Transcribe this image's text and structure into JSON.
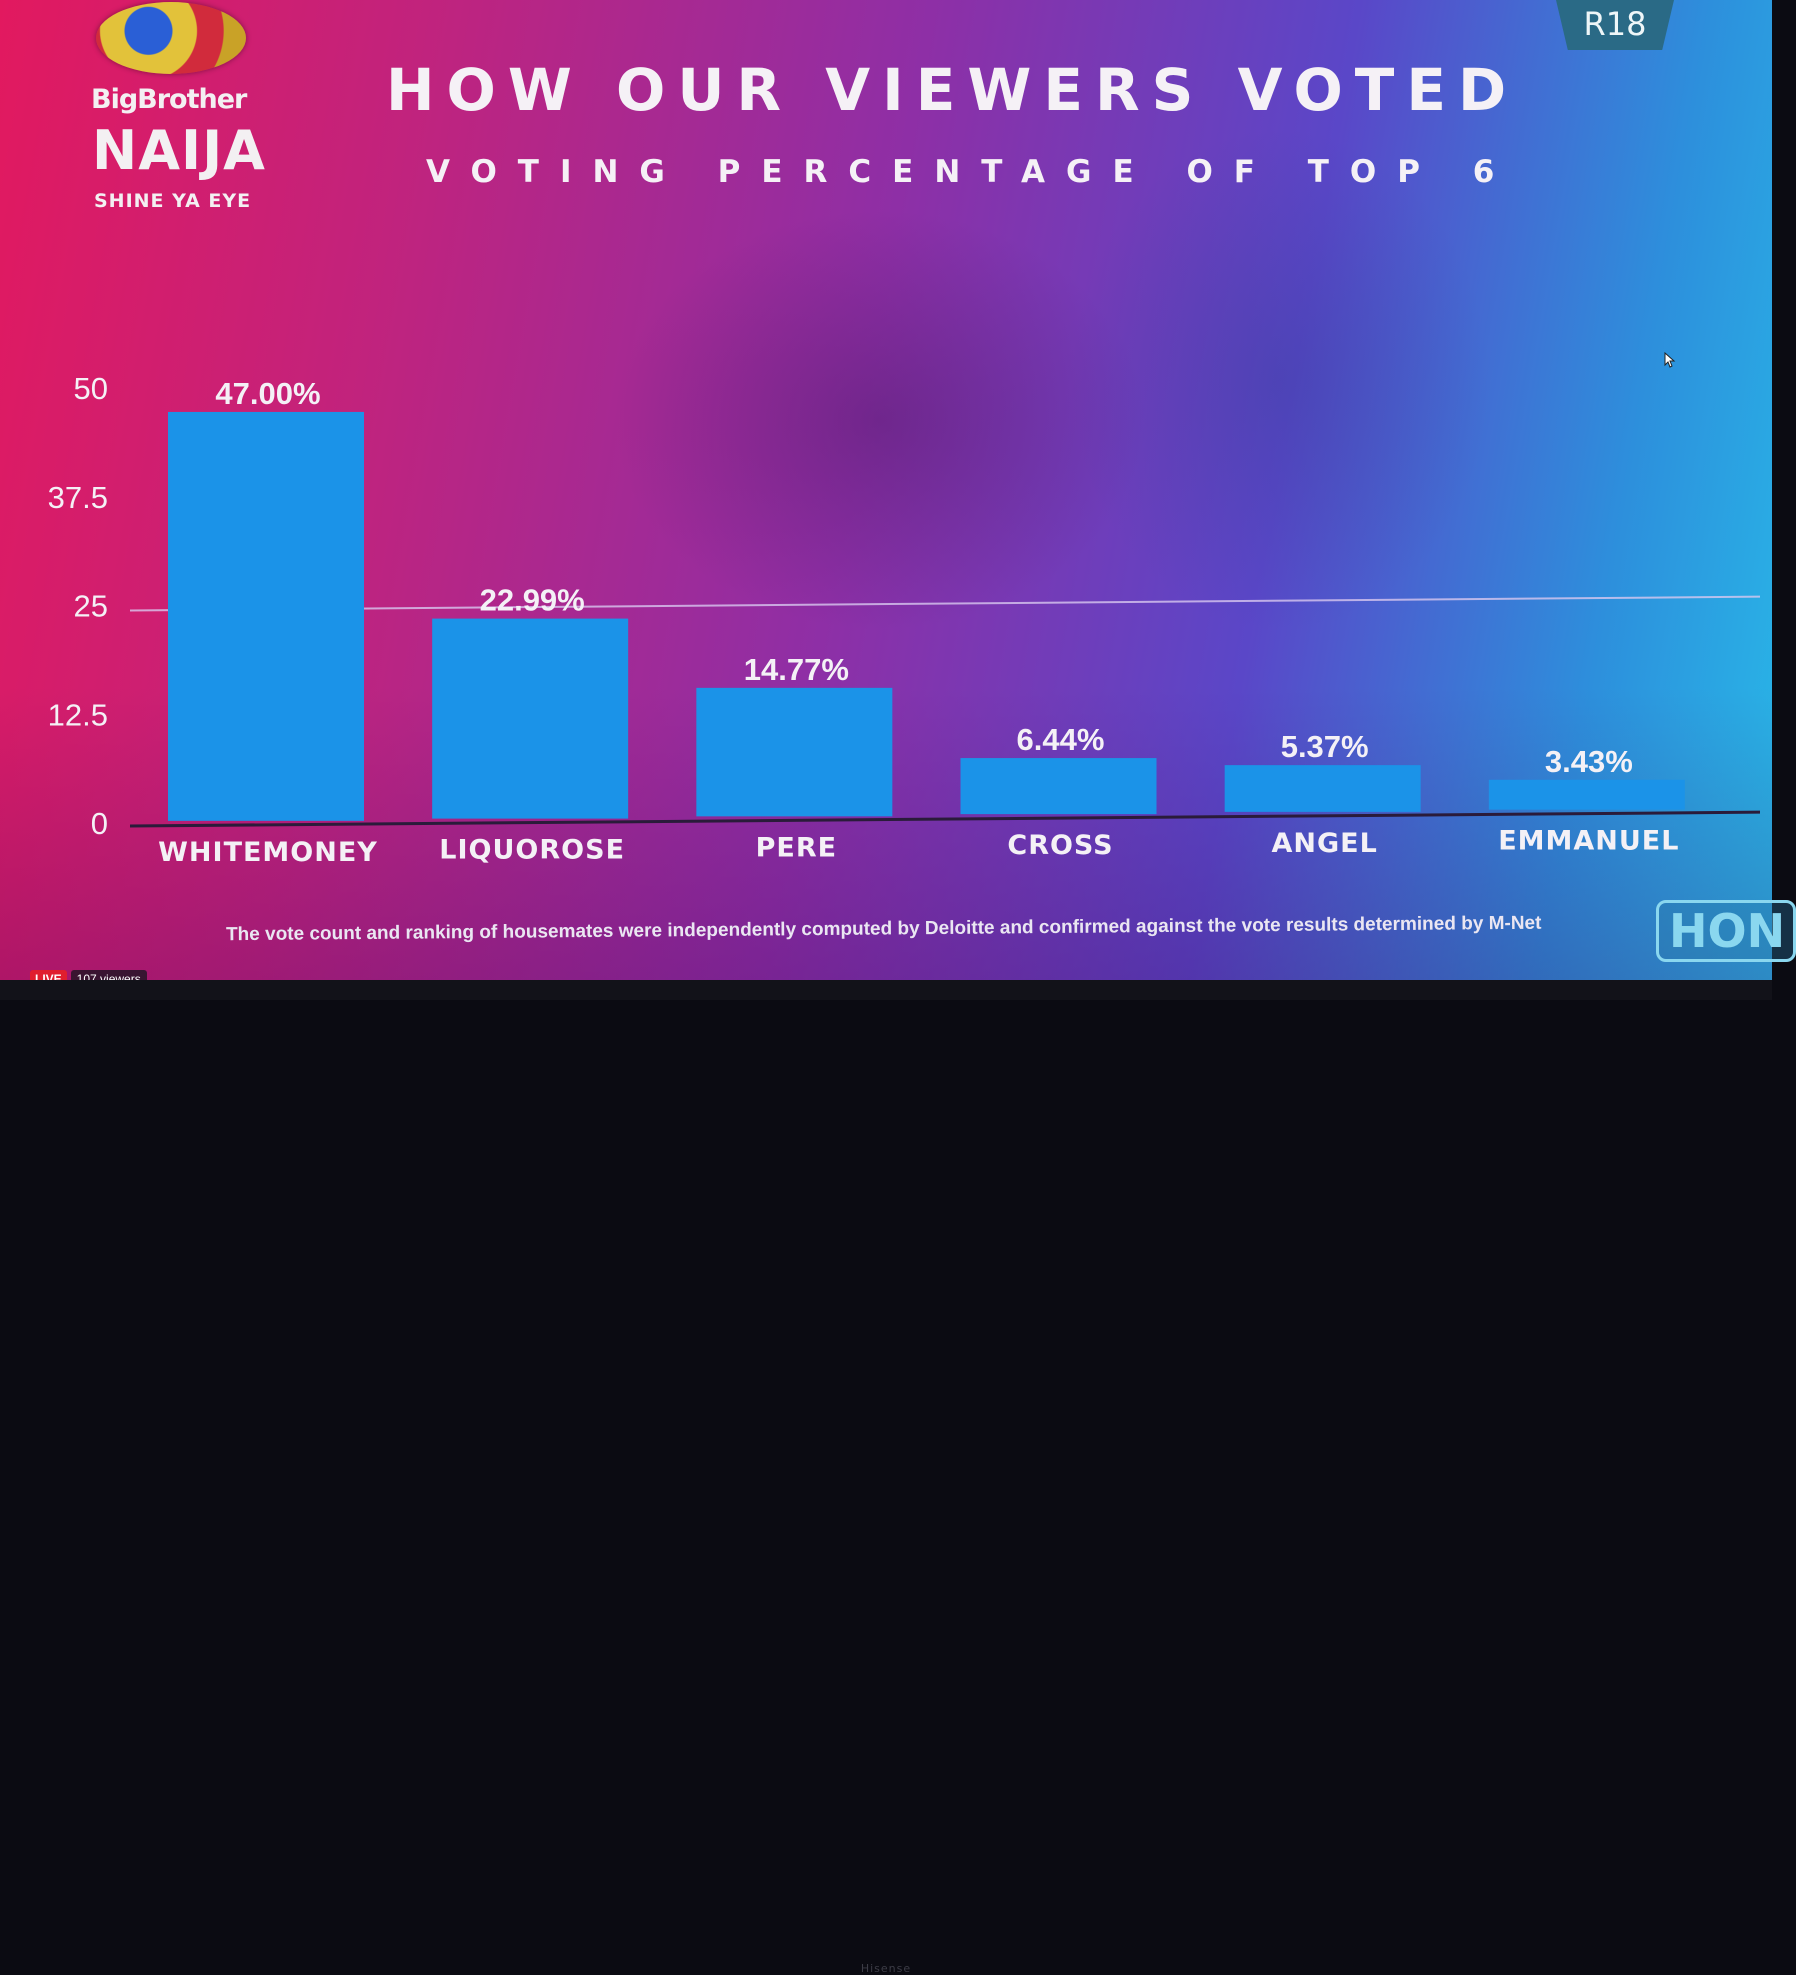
{
  "header": {
    "title": "HOW OUR VIEWERS VOTED",
    "subtitle": "VOTING PERCENTAGE OF TOP 6",
    "rating": "R18"
  },
  "logo": {
    "line1": "BigBrother",
    "line2": "NAIJA",
    "line3": "SHINE YA EYE"
  },
  "footer": {
    "note": "The vote count and ranking of housemates were independently computed by Deloitte and confirmed against the vote results determined by M-Net",
    "badge": "HON",
    "live_label": "LIVE",
    "viewers": "107 viewers",
    "tv_brand": "Hisense"
  },
  "colors": {
    "bar": "#1b93e8",
    "text": "#f4f1f6",
    "gridline": "#d9c8f0",
    "baseline": "#2a1b3a"
  },
  "chart_data": {
    "type": "bar",
    "title": "HOW OUR VIEWERS VOTED",
    "subtitle": "VOTING PERCENTAGE OF TOP 6",
    "categories": [
      "WHITEMONEY",
      "LIQUOROSE",
      "PERE",
      "CROSS",
      "ANGEL",
      "EMMANUEL"
    ],
    "values": [
      47.0,
      22.99,
      14.77,
      6.44,
      5.37,
      3.43
    ],
    "data_labels": [
      "47.00%",
      "22.99%",
      "14.77%",
      "6.44%",
      "5.37%",
      "3.43%"
    ],
    "ylim": [
      0,
      50
    ],
    "yticks": [
      0,
      12.5,
      25,
      37.5,
      50
    ],
    "ytick_labels": [
      "0",
      "12.5",
      "25",
      "37.5",
      "50"
    ],
    "grid": "25 only",
    "legend": "none"
  }
}
